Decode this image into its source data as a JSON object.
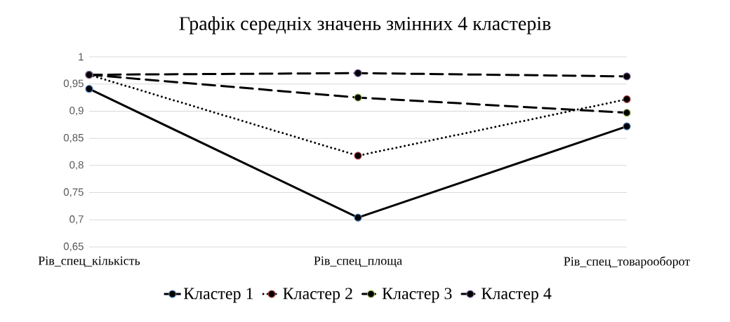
{
  "chart_data": {
    "type": "line",
    "title": "Графік середніх значень змінних 4 кластерів",
    "categories": [
      "Рів_спец_кількість",
      "Рів_спец_площа",
      "Рів_спец_товарооборот"
    ],
    "series": [
      {
        "name": "Кластер 1",
        "color": "#000000",
        "colors": [
          "#4a7ebb",
          "#4a7ebb",
          "#4a7ebb"
        ],
        "line_style": "solid",
        "values": [
          0.941,
          0.704,
          0.872
        ]
      },
      {
        "name": "Кластер 2",
        "color": "#000000",
        "colors": [
          "#be4b48",
          "#be4b48",
          "#be4b48"
        ],
        "line_style": "dotted",
        "values": [
          0.967,
          0.818,
          0.922
        ]
      },
      {
        "name": "Кластер 3",
        "color": "#000000",
        "colors": [
          "#98b954",
          "#98b954",
          "#98b954"
        ],
        "line_style": "dashed",
        "values": [
          0.967,
          0.925,
          0.897
        ]
      },
      {
        "name": "Кластер 4",
        "color": "#000000",
        "colors": [
          "#7d60a0",
          "#7d60a0",
          "#7d60a0"
        ],
        "line_style": "dashed",
        "values": [
          0.967,
          0.97,
          0.964
        ]
      }
    ],
    "ylim": [
      0.65,
      1
    ],
    "yticks": [
      {
        "value": 0.65,
        "label": "0,65"
      },
      {
        "value": 0.7,
        "label": "0,7"
      },
      {
        "value": 0.75,
        "label": "0,75"
      },
      {
        "value": 0.8,
        "label": "0,8"
      },
      {
        "value": 0.85,
        "label": "0,85"
      },
      {
        "value": 0.9,
        "label": "0,9"
      },
      {
        "value": 0.95,
        "label": "0,95"
      },
      1
    ],
    "grid": "y",
    "marker": "circle",
    "legend": "bottom"
  }
}
